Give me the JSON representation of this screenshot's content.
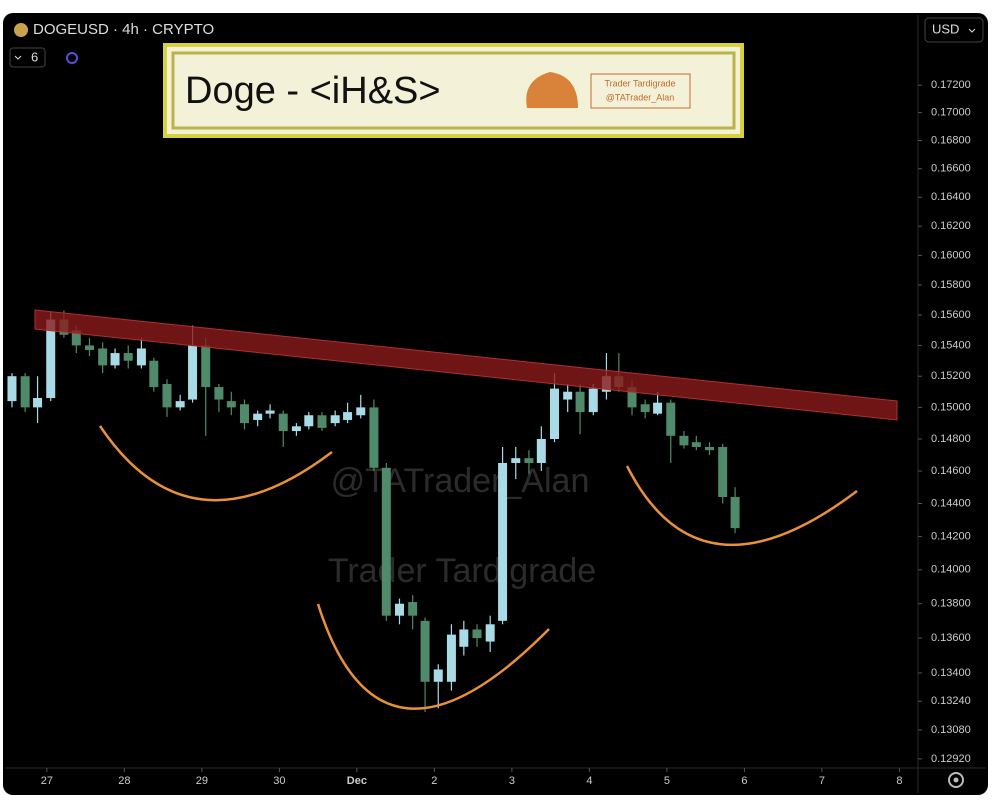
{
  "header": {
    "symbol": "DOGEUSD · 4h · CRYPTO",
    "interval_badge": "6",
    "currency": "USD"
  },
  "watermark": {
    "handle": "@TATrader_Alan",
    "name": "Trader Tardigrade"
  },
  "chart_data": {
    "type": "candlestick",
    "title": "Doge - <iH&S>",
    "badge": {
      "name": "Trader Tardigrade",
      "handle": "@TATrader_Alan"
    },
    "up_color": "#a8dbe6",
    "down_color": "#4f8a6a",
    "log_scale": true,
    "x": [
      26.55,
      26.72,
      26.88,
      27.05,
      27.22,
      27.38,
      27.55,
      27.72,
      27.88,
      28.05,
      28.22,
      28.38,
      28.55,
      28.72,
      28.88,
      29.05,
      29.22,
      29.38,
      29.55,
      29.72,
      29.88,
      30.05,
      30.22,
      30.38,
      30.55,
      30.72,
      30.88,
      31.05,
      31.22,
      31.38,
      31.55,
      31.72,
      31.88,
      32.05,
      32.22,
      32.38,
      32.55,
      32.72,
      32.88,
      33.05,
      33.22,
      33.38,
      33.55,
      33.72,
      33.88,
      34.05,
      34.22,
      34.38,
      34.55,
      34.72,
      34.88,
      35.05,
      35.22,
      35.38,
      35.55,
      35.72,
      35.88
    ],
    "open": [
      0.1504,
      0.152,
      0.15,
      0.1506,
      0.1557,
      0.155,
      0.154,
      0.1538,
      0.1527,
      0.1535,
      0.1527,
      0.153,
      0.1515,
      0.15,
      0.1505,
      0.154,
      0.1513,
      0.1504,
      0.1502,
      0.1492,
      0.1496,
      0.1496,
      0.1485,
      0.1488,
      0.1495,
      0.149,
      0.1492,
      0.1495,
      0.15,
      0.1462,
      0.1373,
      0.1381,
      0.137,
      0.1335,
      0.1335,
      0.1355,
      0.1365,
      0.1358,
      0.137,
      0.1465,
      0.1468,
      0.1465,
      0.148,
      0.1505,
      0.151,
      0.1497,
      0.151,
      0.152,
      0.1513,
      0.1502,
      0.1496,
      0.1503,
      0.1482,
      0.1478,
      0.1475,
      0.1475,
      0.1444
    ],
    "high": [
      0.1522,
      0.1522,
      0.152,
      0.1562,
      0.1563,
      0.1553,
      0.1545,
      0.1542,
      0.1538,
      0.154,
      0.1545,
      0.1532,
      0.1518,
      0.1508,
      0.1553,
      0.1545,
      0.1515,
      0.151,
      0.1505,
      0.1498,
      0.1502,
      0.1498,
      0.149,
      0.1497,
      0.1497,
      0.1498,
      0.1503,
      0.1508,
      0.1505,
      0.1465,
      0.1383,
      0.1385,
      0.1372,
      0.1345,
      0.1368,
      0.137,
      0.1368,
      0.1373,
      0.1475,
      0.1475,
      0.1473,
      0.1488,
      0.1522,
      0.1515,
      0.1515,
      0.1515,
      0.1535,
      0.1535,
      0.1517,
      0.1505,
      0.151,
      0.1505,
      0.1485,
      0.1482,
      0.1478,
      0.1477,
      0.145
    ],
    "low": [
      0.15,
      0.1497,
      0.149,
      0.1504,
      0.1545,
      0.1535,
      0.1533,
      0.1522,
      0.1525,
      0.1525,
      0.1525,
      0.151,
      0.1494,
      0.1498,
      0.1503,
      0.1482,
      0.1497,
      0.1495,
      0.1486,
      0.1488,
      0.1493,
      0.1475,
      0.1482,
      0.1486,
      0.1485,
      0.1488,
      0.149,
      0.1493,
      0.146,
      0.137,
      0.1368,
      0.1365,
      0.1318,
      0.132,
      0.133,
      0.135,
      0.1355,
      0.1352,
      0.1368,
      0.1455,
      0.1458,
      0.146,
      0.1478,
      0.1497,
      0.1483,
      0.1495,
      0.1505,
      0.151,
      0.1495,
      0.1493,
      0.1495,
      0.1465,
      0.1474,
      0.1473,
      0.147,
      0.144,
      0.1422
    ],
    "close": [
      0.152,
      0.15,
      0.1506,
      0.1557,
      0.1547,
      0.154,
      0.1537,
      0.1527,
      0.1535,
      0.153,
      0.1538,
      0.1513,
      0.15,
      0.1504,
      0.154,
      0.1513,
      0.1505,
      0.15,
      0.149,
      0.1496,
      0.1498,
      0.1485,
      0.1488,
      0.1495,
      0.1487,
      0.1495,
      0.1497,
      0.15,
      0.1462,
      0.1373,
      0.138,
      0.1373,
      0.1335,
      0.1342,
      0.1362,
      0.1365,
      0.136,
      0.1368,
      0.1465,
      0.1468,
      0.1465,
      0.148,
      0.1512,
      0.151,
      0.1497,
      0.1512,
      0.152,
      0.1513,
      0.15,
      0.1497,
      0.1503,
      0.1482,
      0.1476,
      0.1475,
      0.1473,
      0.1444,
      0.1425
    ],
    "xlim": [
      26.46,
      38.24
    ],
    "xticks": [
      27,
      28,
      29,
      30,
      {
        "value": 31,
        "label": "Dec"
      },
      {
        "value": 32,
        "label": "2"
      },
      {
        "value": 33,
        "label": "3"
      },
      {
        "value": 34,
        "label": "4"
      },
      {
        "value": 35,
        "label": "5"
      },
      {
        "value": 36,
        "label": "6"
      },
      {
        "value": 37,
        "label": "7"
      },
      {
        "value": 38,
        "label": "8"
      }
    ],
    "ylim": [
      0.1287,
      0.1772
    ],
    "yticks": [
      {
        "value": 0.172,
        "label": "0.17200"
      },
      {
        "value": 0.17,
        "label": "0.17000"
      },
      {
        "value": 0.168,
        "label": "0.16800"
      },
      {
        "value": 0.166,
        "label": "0.16600"
      },
      {
        "value": 0.164,
        "label": "0.16400"
      },
      {
        "value": 0.162,
        "label": "0.16200"
      },
      {
        "value": 0.16,
        "label": "0.16000"
      },
      {
        "value": 0.158,
        "label": "0.15800"
      },
      {
        "value": 0.156,
        "label": "0.15600"
      },
      {
        "value": 0.154,
        "label": "0.15400"
      },
      {
        "value": 0.152,
        "label": "0.15200"
      },
      {
        "value": 0.15,
        "label": "0.15000"
      },
      {
        "value": 0.148,
        "label": "0.14800"
      },
      {
        "value": 0.146,
        "label": "0.14600"
      },
      {
        "value": 0.144,
        "label": "0.14400"
      },
      {
        "value": 0.142,
        "label": "0.14200"
      },
      {
        "value": 0.14,
        "label": "0.14000"
      },
      {
        "value": 0.138,
        "label": "0.13800"
      },
      {
        "value": 0.136,
        "label": "0.13600"
      },
      {
        "value": 0.134,
        "label": "0.13400"
      },
      {
        "value": 0.1324,
        "label": "0.13240"
      },
      {
        "value": 0.1308,
        "label": "0.13080"
      },
      {
        "value": 0.1292,
        "label": "0.12920"
      }
    ]
  }
}
